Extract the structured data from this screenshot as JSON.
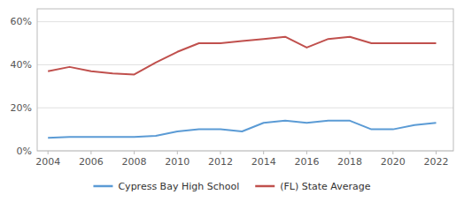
{
  "chart_data": {
    "type": "line",
    "x": [
      2004,
      2005,
      2006,
      2007,
      2008,
      2009,
      2010,
      2011,
      2012,
      2013,
      2014,
      2015,
      2016,
      2017,
      2018,
      2019,
      2020,
      2021,
      2022
    ],
    "series": [
      {
        "name": "Cypress Bay High School",
        "color": "#5b9bd5",
        "values": [
          0.06,
          0.065,
          0.065,
          0.065,
          0.065,
          0.07,
          0.09,
          0.1,
          0.1,
          0.09,
          0.13,
          0.14,
          0.13,
          0.14,
          0.14,
          0.1,
          0.1,
          0.12,
          0.13
        ]
      },
      {
        "name": "(FL) State Average",
        "color": "#c0504d",
        "values": [
          0.37,
          0.39,
          0.37,
          0.36,
          0.355,
          0.41,
          0.46,
          0.5,
          0.5,
          0.51,
          0.52,
          0.53,
          0.48,
          0.52,
          0.53,
          0.5,
          0.5,
          0.5,
          0.5
        ]
      }
    ],
    "xlim": [
      2003.5,
      2022.8
    ],
    "xticks": [
      2004,
      2006,
      2008,
      2010,
      2012,
      2014,
      2016,
      2018,
      2020,
      2022
    ],
    "ylim": [
      0.0,
      0.66
    ],
    "yticks": [
      {
        "value": 0.0,
        "label": "0%"
      },
      {
        "value": 0.2,
        "label": "20%"
      },
      {
        "value": 0.4,
        "label": "40%"
      },
      {
        "value": 0.6,
        "label": "60%"
      }
    ],
    "grid": true,
    "legend": "bottom"
  }
}
